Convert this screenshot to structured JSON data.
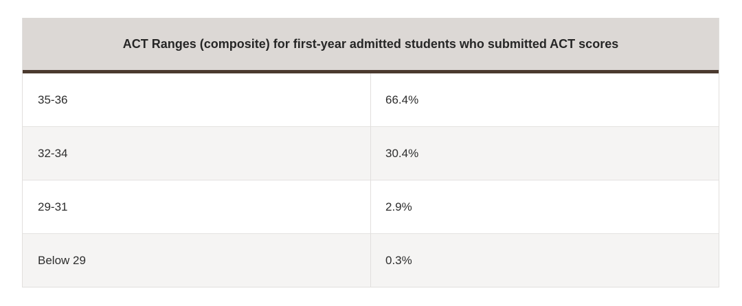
{
  "table": {
    "title": "ACT Ranges (composite) for first-year admitted students who submitted ACT scores",
    "rows": [
      {
        "range": "35-36",
        "percent": "66.4%"
      },
      {
        "range": "32-34",
        "percent": "30.4%"
      },
      {
        "range": "29-31",
        "percent": "2.9%"
      },
      {
        "range": "Below 29",
        "percent": "0.3%"
      }
    ]
  },
  "colors": {
    "header_bg": "#dcd8d5",
    "header_rule": "#4b3a2e",
    "stripe_bg": "#f5f4f3"
  }
}
